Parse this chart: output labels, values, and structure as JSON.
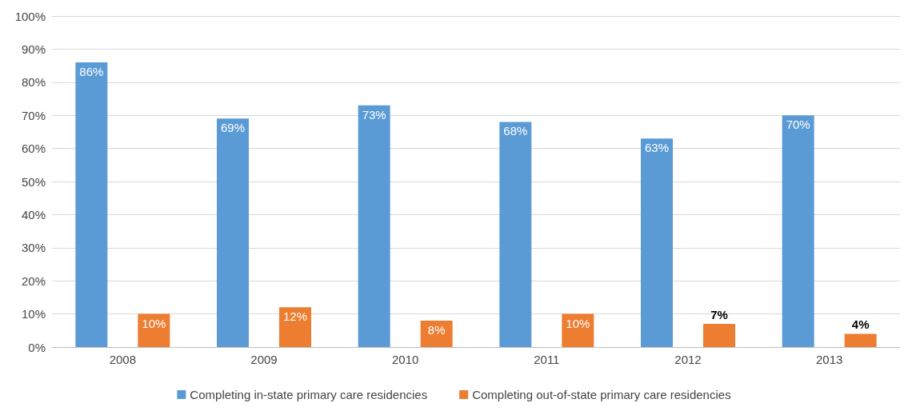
{
  "chart_data": {
    "type": "bar",
    "categories": [
      "2008",
      "2009",
      "2010",
      "2011",
      "2012",
      "2013"
    ],
    "series": [
      {
        "name": "Completing in-state primary care residencies",
        "color": "#5b9bd5",
        "values": [
          86,
          69,
          73,
          68,
          63,
          70
        ],
        "value_labels": [
          "86%",
          "69%",
          "73%",
          "68%",
          "63%",
          "70%"
        ]
      },
      {
        "name": "Completing out-of-state primary care residencies",
        "color": "#ed7d31",
        "values": [
          10,
          12,
          8,
          10,
          7,
          4
        ],
        "value_labels": [
          "10%",
          "12%",
          "8%",
          "10%",
          "7%",
          "4%"
        ]
      }
    ],
    "ylim": [
      0,
      100
    ],
    "yticks": [
      {
        "value": 0,
        "label": "0%"
      },
      {
        "value": 10,
        "label": "10%"
      },
      {
        "value": 20,
        "label": "20%"
      },
      {
        "value": 30,
        "label": "30%"
      },
      {
        "value": 40,
        "label": "40%"
      },
      {
        "value": 50,
        "label": "50%"
      },
      {
        "value": 60,
        "label": "60%"
      },
      {
        "value": 70,
        "label": "70%"
      },
      {
        "value": 80,
        "label": "80%"
      },
      {
        "value": 90,
        "label": "90%"
      },
      {
        "value": 100,
        "label": "100%"
      }
    ],
    "grid": "y",
    "legend": "bottom"
  }
}
